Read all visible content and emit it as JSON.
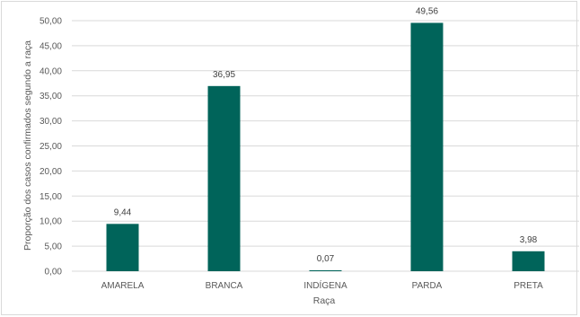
{
  "chart_data": {
    "type": "bar",
    "categories": [
      "AMARELA",
      "BRANCA",
      "INDÍGENA",
      "PARDA",
      "PRETA"
    ],
    "values": [
      9.44,
      36.95,
      0.07,
      49.56,
      3.98
    ],
    "value_labels": [
      "9,44",
      "36,95",
      "0,07",
      "49,56",
      "3,98"
    ],
    "title": "",
    "xlabel": "Raça",
    "ylabel": "Proporção dos casos confirmados segundo a raça",
    "ylim": [
      0,
      50
    ],
    "yticks": [
      0,
      5,
      10,
      15,
      20,
      25,
      30,
      35,
      40,
      45,
      50
    ],
    "ytick_labels": [
      "0,00",
      "5,00",
      "10,00",
      "15,00",
      "20,00",
      "25,00",
      "30,00",
      "35,00",
      "40,00",
      "45,00",
      "50,00"
    ],
    "grid": true,
    "bar_color": "#00645a",
    "grid_color": "#d9d9d9"
  }
}
